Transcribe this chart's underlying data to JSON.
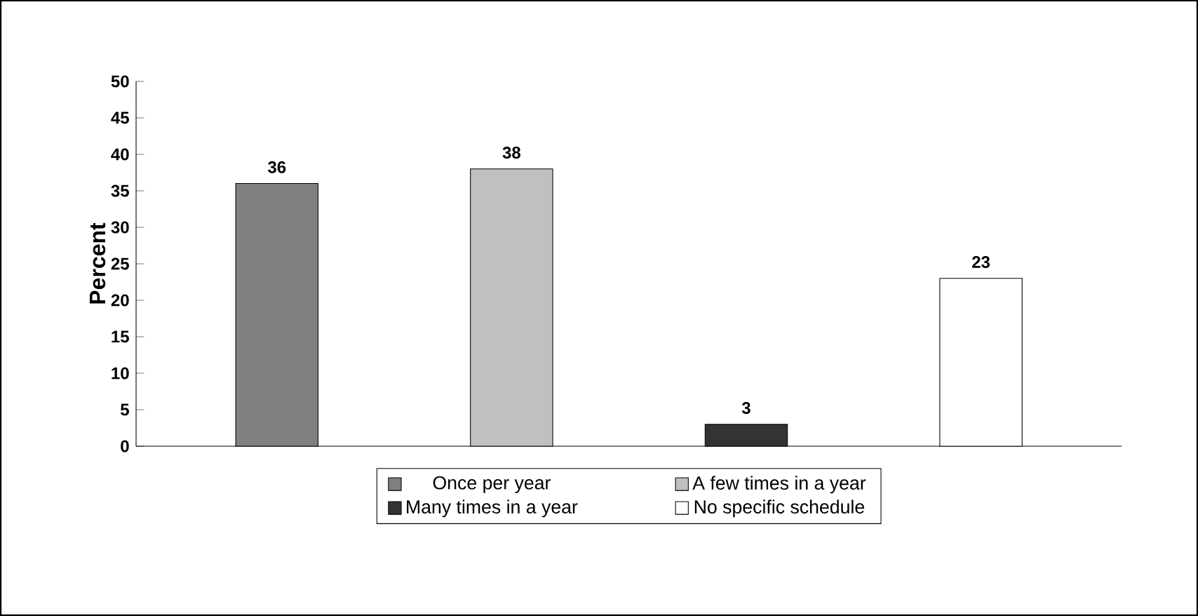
{
  "chart_data": {
    "type": "bar",
    "ylabel": "Percent",
    "categories": [
      null,
      null,
      null,
      null
    ],
    "series": [
      {
        "name": "Once per year",
        "color": "#808080",
        "values": [
          36,
          null,
          null,
          null
        ]
      },
      {
        "name": "A few times in a year",
        "color": "#c0c0c0",
        "values": [
          null,
          38,
          null,
          null
        ]
      },
      {
        "name": "Many times in a year",
        "color": "#333333",
        "values": [
          null,
          null,
          3,
          null
        ]
      },
      {
        "name": "No specific schedule",
        "color": "#ffffff",
        "values": [
          null,
          null,
          null,
          23
        ]
      }
    ],
    "ylim": [
      0,
      50
    ],
    "yticks": [
      0,
      5,
      10,
      15,
      20,
      25,
      30,
      35,
      40,
      45,
      50
    ],
    "data_labels": true,
    "legend": "bottom",
    "grid": false
  }
}
